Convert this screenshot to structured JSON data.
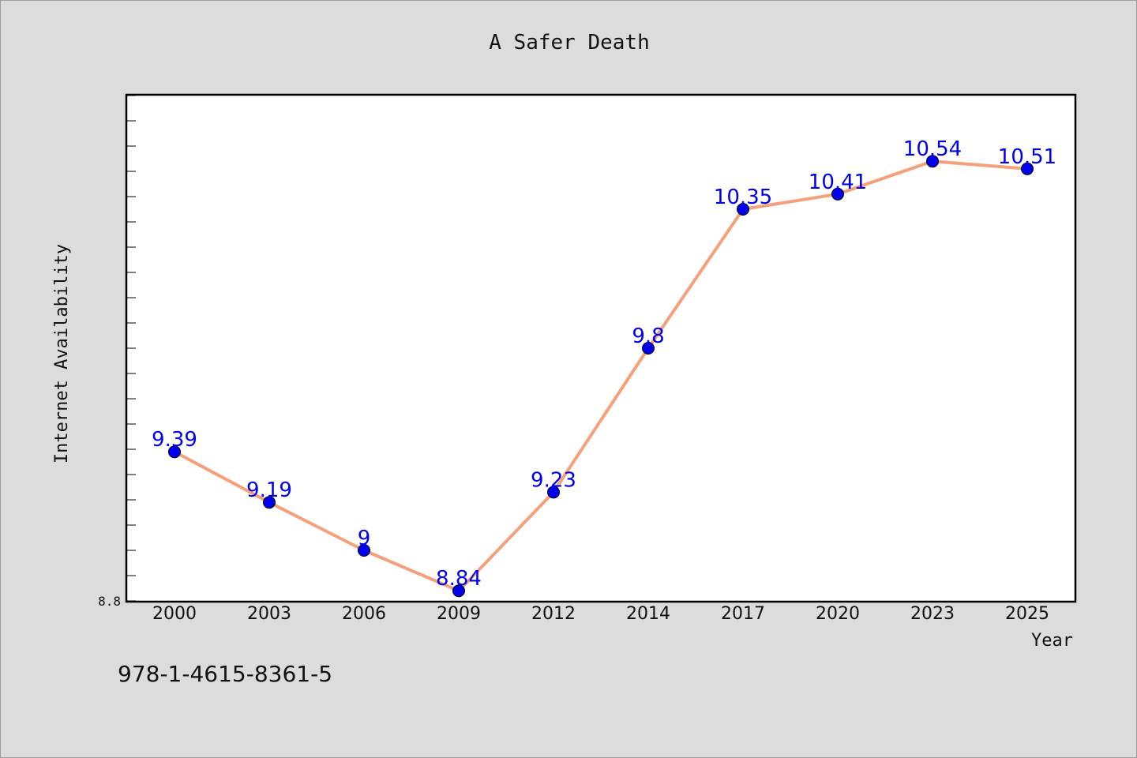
{
  "chart_data": {
    "type": "line",
    "title": "A Safer Death",
    "xlabel": "Year",
    "ylabel": "Internet Availability",
    "categories": [
      "2000",
      "2003",
      "2006",
      "2009",
      "2012",
      "2014",
      "2017",
      "2020",
      "2023",
      "2025"
    ],
    "series": [
      {
        "values": [
          9.39,
          9.19,
          9.0,
          8.84,
          9.23,
          9.8,
          10.35,
          10.41,
          10.54,
          10.51
        ],
        "data_labels": [
          "9.39",
          "9.19",
          "9",
          "8.84",
          "9.23",
          "9.8",
          "10.35",
          "10.41",
          "10.54",
          "10.51"
        ],
        "line_color": "#f4a07a",
        "marker_color": "#0000ee"
      }
    ],
    "y_tick_labels": [
      "8.8"
    ],
    "ylim": [
      8.8,
      10.8
    ],
    "grid": false,
    "label_color": "#0000ee"
  },
  "footer": {
    "isbn": "978-1-4615-8361-5"
  }
}
